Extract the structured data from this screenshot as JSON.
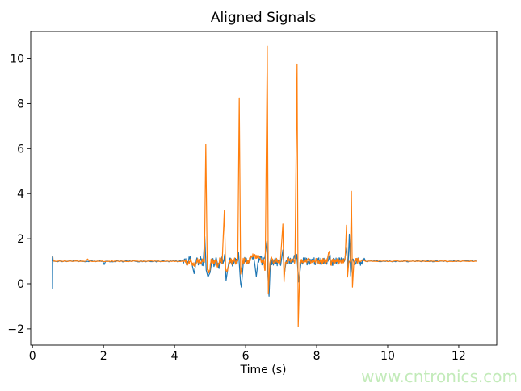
{
  "watermark": {
    "text": "www.cntronics.com",
    "color": "#c3ebba"
  },
  "chart_data": {
    "type": "line",
    "title": "Aligned Signals",
    "xlabel": "Time (s)",
    "ylabel": "",
    "xlim": [
      -0.05,
      13.07
    ],
    "ylim": [
      -2.72,
      11.2
    ],
    "x_ticks": [
      0,
      2,
      4,
      6,
      8,
      10,
      12
    ],
    "y_ticks": [
      -2,
      0,
      2,
      4,
      6,
      8,
      10
    ],
    "grid": false,
    "legend": null,
    "baseline_level": 1.0,
    "active_interval": [
      4.25,
      9.35
    ],
    "series": [
      {
        "color": "#1f77b4",
        "noise_amp_busy": 0.16,
        "noise_amp_quiet": 0.03,
        "points": [
          [
            0.555,
            1.0
          ],
          [
            0.56,
            1.2
          ],
          [
            0.565,
            -0.2
          ],
          [
            0.575,
            1.05
          ],
          [
            0.6,
            1.0
          ],
          [
            1.98,
            1.0
          ],
          [
            2.02,
            0.85
          ],
          [
            2.06,
            1.0
          ],
          [
            4.2,
            1.0
          ],
          [
            4.28,
            1.1
          ],
          [
            4.35,
            0.85
          ],
          [
            4.42,
            1.15
          ],
          [
            4.5,
            0.8
          ],
          [
            4.55,
            0.45
          ],
          [
            4.62,
            1.1
          ],
          [
            4.68,
            0.88
          ],
          [
            4.74,
            1.12
          ],
          [
            4.8,
            0.8
          ],
          [
            4.85,
            2.1
          ],
          [
            4.89,
            0.6
          ],
          [
            4.94,
            0.3
          ],
          [
            5.0,
            0.5
          ],
          [
            5.06,
            1.12
          ],
          [
            5.12,
            0.88
          ],
          [
            5.18,
            1.1
          ],
          [
            5.24,
            0.72
          ],
          [
            5.3,
            1.12
          ],
          [
            5.36,
            0.9
          ],
          [
            5.41,
            1.3
          ],
          [
            5.45,
            0.15
          ],
          [
            5.52,
            0.9
          ],
          [
            5.58,
            1.1
          ],
          [
            5.64,
            0.9
          ],
          [
            5.7,
            1.1
          ],
          [
            5.76,
            0.88
          ],
          [
            5.8,
            1.4
          ],
          [
            5.86,
            0.0
          ],
          [
            5.88,
            -0.15
          ],
          [
            5.94,
            1.0
          ],
          [
            6.02,
            1.12
          ],
          [
            6.08,
            0.88
          ],
          [
            6.14,
            1.12
          ],
          [
            6.2,
            1.18
          ],
          [
            6.26,
            0.85
          ],
          [
            6.3,
            0.32
          ],
          [
            6.36,
            1.1
          ],
          [
            6.42,
            1.15
          ],
          [
            6.48,
            0.9
          ],
          [
            6.54,
            1.15
          ],
          [
            6.6,
            1.9
          ],
          [
            6.63,
            0.3
          ],
          [
            6.66,
            -0.55
          ],
          [
            6.7,
            1.05
          ],
          [
            6.76,
            0.9
          ],
          [
            6.82,
            1.08
          ],
          [
            6.88,
            0.92
          ],
          [
            6.94,
            1.05
          ],
          [
            7.0,
            0.95
          ],
          [
            7.05,
            1.5
          ],
          [
            7.09,
            0.4
          ],
          [
            7.14,
            1.0
          ],
          [
            7.22,
            1.06
          ],
          [
            7.29,
            0.94
          ],
          [
            7.35,
            1.04
          ],
          [
            7.44,
            1.3
          ],
          [
            7.5,
            0.08
          ],
          [
            7.56,
            0.95
          ],
          [
            7.65,
            1.03
          ],
          [
            7.75,
            0.98
          ],
          [
            7.85,
            1.02
          ],
          [
            7.95,
            0.99
          ],
          [
            8.05,
            1.02
          ],
          [
            8.15,
            0.98
          ],
          [
            8.25,
            1.01
          ],
          [
            8.32,
            1.0
          ],
          [
            8.37,
            1.25
          ],
          [
            8.41,
            0.88
          ],
          [
            8.48,
            1.02
          ],
          [
            8.58,
            0.98
          ],
          [
            8.68,
            1.02
          ],
          [
            8.78,
            0.99
          ],
          [
            8.85,
            1.6
          ],
          [
            8.88,
            0.55
          ],
          [
            8.92,
            2.2
          ],
          [
            8.96,
            0.35
          ],
          [
            9.0,
            1.1
          ],
          [
            9.06,
            0.85
          ],
          [
            9.12,
            1.05
          ],
          [
            9.2,
            0.95
          ],
          [
            9.3,
            1.0
          ],
          [
            12.5,
            1.0
          ]
        ]
      },
      {
        "color": "#ff7f0e",
        "noise_amp_busy": 0.12,
        "noise_amp_quiet": 0.015,
        "points": [
          [
            0.57,
            1.25
          ],
          [
            0.585,
            1.0
          ],
          [
            1.5,
            1.0
          ],
          [
            1.55,
            1.1
          ],
          [
            1.6,
            1.0
          ],
          [
            4.2,
            1.0
          ],
          [
            4.3,
            1.06
          ],
          [
            4.38,
            0.88
          ],
          [
            4.45,
            1.1
          ],
          [
            4.52,
            0.82
          ],
          [
            4.59,
            0.86
          ],
          [
            4.65,
            1.12
          ],
          [
            4.72,
            0.9
          ],
          [
            4.78,
            1.1
          ],
          [
            4.84,
            0.95
          ],
          [
            4.88,
            6.2
          ],
          [
            4.92,
            0.62
          ],
          [
            4.98,
            0.58
          ],
          [
            5.03,
            1.1
          ],
          [
            5.1,
            0.92
          ],
          [
            5.16,
            1.06
          ],
          [
            5.22,
            0.78
          ],
          [
            5.28,
            1.1
          ],
          [
            5.34,
            0.92
          ],
          [
            5.4,
            3.25
          ],
          [
            5.44,
            0.6
          ],
          [
            5.5,
            0.72
          ],
          [
            5.56,
            1.05
          ],
          [
            5.62,
            0.95
          ],
          [
            5.68,
            1.08
          ],
          [
            5.74,
            0.92
          ],
          [
            5.78,
            1.02
          ],
          [
            5.82,
            8.25
          ],
          [
            5.86,
            0.43
          ],
          [
            5.92,
            1.0
          ],
          [
            6.0,
            1.08
          ],
          [
            6.06,
            0.92
          ],
          [
            6.12,
            1.1
          ],
          [
            6.18,
            1.2
          ],
          [
            6.25,
            1.25
          ],
          [
            6.32,
            1.15
          ],
          [
            6.38,
            1.22
          ],
          [
            6.44,
            0.95
          ],
          [
            6.5,
            1.1
          ],
          [
            6.55,
            0.6
          ],
          [
            6.61,
            10.55
          ],
          [
            6.64,
            -0.45
          ],
          [
            6.68,
            0.9
          ],
          [
            6.74,
            1.1
          ],
          [
            6.8,
            0.95
          ],
          [
            6.86,
            1.05
          ],
          [
            6.92,
            0.95
          ],
          [
            6.98,
            1.02
          ],
          [
            7.05,
            2.65
          ],
          [
            7.08,
            0.08
          ],
          [
            7.12,
            0.95
          ],
          [
            7.2,
            1.08
          ],
          [
            7.27,
            0.95
          ],
          [
            7.33,
            1.05
          ],
          [
            7.39,
            1.0
          ],
          [
            7.45,
            9.75
          ],
          [
            7.48,
            -1.9
          ],
          [
            7.53,
            0.95
          ],
          [
            7.6,
            1.04
          ],
          [
            7.7,
            0.98
          ],
          [
            7.8,
            1.03
          ],
          [
            7.9,
            0.99
          ],
          [
            8.0,
            1.02
          ],
          [
            8.1,
            0.99
          ],
          [
            8.2,
            1.02
          ],
          [
            8.3,
            1.0
          ],
          [
            8.36,
            1.45
          ],
          [
            8.4,
            0.85
          ],
          [
            8.46,
            1.03
          ],
          [
            8.55,
            0.99
          ],
          [
            8.65,
            1.01
          ],
          [
            8.75,
            1.0
          ],
          [
            8.8,
            1.04
          ],
          [
            8.84,
            2.6
          ],
          [
            8.87,
            0.3
          ],
          [
            8.91,
            1.0
          ],
          [
            8.95,
            1.04
          ],
          [
            8.98,
            4.1
          ],
          [
            9.01,
            -0.15
          ],
          [
            9.05,
            1.0
          ],
          [
            9.12,
            1.03
          ],
          [
            9.2,
            1.0
          ],
          [
            12.5,
            1.0
          ]
        ]
      }
    ]
  }
}
